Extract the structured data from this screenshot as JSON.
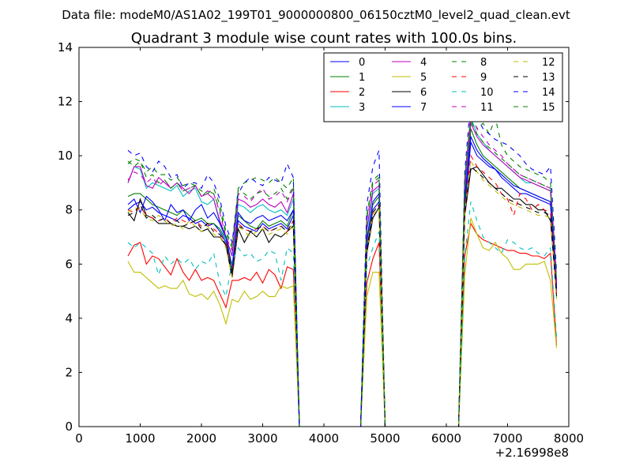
{
  "figure": {
    "suptitle": "Data file: modeM0/AS1A02_199T01_9000000800_06150cztM0_level2_quad_clean.evt"
  },
  "chart_data": {
    "type": "line",
    "title": "Quadrant 3 module wise count rates with 100.0s bins.",
    "xlabel": "",
    "ylabel": "",
    "x_offset_label": "+2.16998e8",
    "xlim": [
      0,
      8000
    ],
    "ylim": [
      0,
      14
    ],
    "xticks": [
      0,
      1000,
      2000,
      3000,
      4000,
      5000,
      6000,
      7000,
      8000
    ],
    "yticks": [
      0,
      2,
      4,
      6,
      8,
      10,
      12,
      14
    ],
    "grid": false,
    "legend_location": "upper right",
    "legend_columns": 4,
    "x": [
      800,
      900,
      1000,
      1100,
      1200,
      1300,
      1400,
      1500,
      1600,
      1700,
      1800,
      1900,
      2000,
      2100,
      2200,
      2300,
      2400,
      2500,
      2600,
      2700,
      2800,
      2900,
      3000,
      3100,
      3200,
      3300,
      3400,
      3500,
      3600,
      3700,
      3800,
      3900,
      4000,
      4100,
      4200,
      4300,
      4400,
      4500,
      4600,
      4700,
      4800,
      4900,
      5000,
      5100,
      5200,
      5300,
      5400,
      5500,
      5600,
      5700,
      5800,
      5900,
      6000,
      6100,
      6200,
      6300,
      6400,
      6500,
      6600,
      6700,
      6800,
      6900,
      7000,
      7100,
      7200,
      7300,
      7400,
      7500,
      7600,
      7700,
      7800
    ],
    "series": [
      {
        "name": "0",
        "color": "#0000ff",
        "dash": "solid",
        "values": [
          8.0,
          8.2,
          8.3,
          8.0,
          8.1,
          7.9,
          7.8,
          7.7,
          7.6,
          7.8,
          7.7,
          7.5,
          7.6,
          7.4,
          7.5,
          7.2,
          6.8,
          5.7,
          7.6,
          7.4,
          7.3,
          7.2,
          7.5,
          7.3,
          7.4,
          7.5,
          7.3,
          7.8,
          0,
          0,
          0,
          0,
          0,
          0,
          0,
          0,
          0,
          0,
          0,
          6.5,
          8.0,
          8.3,
          0,
          0,
          0,
          0,
          0,
          0,
          0,
          0,
          0,
          0,
          0,
          0,
          0,
          8.0,
          10.5,
          10.0,
          9.8,
          9.6,
          9.5,
          9.2,
          9.0,
          8.8,
          8.6,
          8.6,
          8.5,
          8.4,
          8.3,
          8.2,
          5.0
        ]
      },
      {
        "name": "1",
        "color": "#008000",
        "dash": "solid",
        "values": [
          8.5,
          8.6,
          8.6,
          8.4,
          8.2,
          8.1,
          8.0,
          7.9,
          7.8,
          8.0,
          7.8,
          7.6,
          7.7,
          7.5,
          7.5,
          7.3,
          6.9,
          5.8,
          7.8,
          7.6,
          7.4,
          7.3,
          7.6,
          7.4,
          7.5,
          7.6,
          7.4,
          8.0,
          0,
          0,
          0,
          0,
          0,
          0,
          0,
          0,
          0,
          0,
          0,
          6.8,
          8.2,
          8.5,
          0,
          0,
          0,
          0,
          0,
          0,
          0,
          0,
          0,
          0,
          0,
          0,
          0,
          8.2,
          11.0,
          10.4,
          10.0,
          9.8,
          9.6,
          9.4,
          9.2,
          9.0,
          8.8,
          8.7,
          8.6,
          8.5,
          8.4,
          8.3,
          5.2
        ]
      },
      {
        "name": "2",
        "color": "#ff0000",
        "dash": "solid",
        "values": [
          6.3,
          6.7,
          6.8,
          6.0,
          6.3,
          6.2,
          5.9,
          5.6,
          6.2,
          5.7,
          5.4,
          5.8,
          5.4,
          5.5,
          5.4,
          4.9,
          4.4,
          5.4,
          5.4,
          5.5,
          5.4,
          5.7,
          5.3,
          5.8,
          5.6,
          5.1,
          5.9,
          5.8,
          0,
          0,
          0,
          0,
          0,
          0,
          0,
          0,
          0,
          0,
          0,
          5.3,
          6.2,
          6.8,
          0,
          0,
          0,
          0,
          0,
          0,
          0,
          0,
          0,
          0,
          0,
          0,
          0,
          6.3,
          7.5,
          7.1,
          6.9,
          6.8,
          6.7,
          6.6,
          6.5,
          6.5,
          6.4,
          6.4,
          6.3,
          6.3,
          6.2,
          6.4,
          3.0
        ]
      },
      {
        "name": "3",
        "color": "#00bfbf",
        "dash": "solid",
        "values": [
          9.0,
          9.6,
          9.5,
          8.8,
          9.0,
          8.9,
          8.8,
          8.7,
          8.9,
          8.5,
          8.7,
          8.8,
          8.3,
          8.2,
          8.4,
          7.5,
          6.9,
          6.3,
          8.2,
          8.1,
          7.9,
          8.1,
          8.2,
          8.0,
          7.9,
          8.0,
          7.8,
          8.4,
          0,
          0,
          0,
          0,
          0,
          0,
          0,
          0,
          0,
          0,
          0,
          7.2,
          8.6,
          8.8,
          0,
          0,
          0,
          0,
          0,
          0,
          0,
          0,
          0,
          0,
          0,
          0,
          0,
          8.6,
          11.4,
          10.8,
          10.5,
          10.2,
          10.0,
          9.8,
          9.6,
          9.4,
          9.2,
          9.0,
          9.0,
          8.9,
          8.8,
          8.7,
          5.4
        ]
      },
      {
        "name": "4",
        "color": "#bf00bf",
        "dash": "solid",
        "values": [
          9.0,
          9.6,
          9.6,
          8.9,
          8.8,
          9.2,
          9.0,
          8.8,
          9.0,
          8.8,
          8.6,
          8.9,
          8.5,
          8.6,
          8.4,
          7.6,
          7.0,
          6.3,
          8.4,
          8.3,
          8.1,
          8.2,
          8.4,
          8.2,
          8.1,
          8.3,
          7.9,
          8.6,
          0,
          0,
          0,
          0,
          0,
          0,
          0,
          0,
          0,
          0,
          0,
          7.3,
          8.7,
          8.9,
          0,
          0,
          0,
          0,
          0,
          0,
          0,
          0,
          0,
          0,
          0,
          0,
          0,
          8.8,
          11.2,
          10.7,
          10.4,
          10.2,
          10.0,
          9.8,
          9.6,
          9.4,
          9.2,
          9.1,
          9.0,
          8.9,
          8.8,
          8.7,
          5.3
        ]
      },
      {
        "name": "5",
        "color": "#bfbf00",
        "dash": "solid",
        "values": [
          6.1,
          5.7,
          5.7,
          5.5,
          5.3,
          5.1,
          5.2,
          5.1,
          5.1,
          5.4,
          4.9,
          4.8,
          4.9,
          4.7,
          5.0,
          4.5,
          3.8,
          4.7,
          4.6,
          5.0,
          4.7,
          4.8,
          5.0,
          4.8,
          4.8,
          5.2,
          5.1,
          5.2,
          0,
          0,
          0,
          0,
          0,
          0,
          0,
          0,
          0,
          0,
          0,
          4.8,
          5.7,
          5.7,
          0,
          0,
          0,
          0,
          0,
          0,
          0,
          0,
          0,
          0,
          0,
          0,
          0,
          5.6,
          7.7,
          7.1,
          6.6,
          6.5,
          6.8,
          6.4,
          6.2,
          5.8,
          5.8,
          6.0,
          6.0,
          6.0,
          6.1,
          5.4,
          2.9
        ]
      },
      {
        "name": "6",
        "color": "#000000",
        "dash": "solid",
        "values": [
          7.9,
          7.6,
          8.4,
          7.8,
          7.7,
          7.5,
          7.5,
          7.5,
          7.4,
          7.4,
          7.3,
          7.4,
          7.2,
          7.3,
          7.0,
          7.0,
          6.7,
          5.5,
          7.3,
          6.8,
          7.2,
          7.0,
          7.3,
          6.8,
          7.1,
          7.0,
          7.2,
          7.4,
          0,
          0,
          0,
          0,
          0,
          0,
          0,
          0,
          0,
          0,
          0,
          6.4,
          7.7,
          8.1,
          0,
          0,
          0,
          0,
          0,
          0,
          0,
          0,
          0,
          0,
          0,
          0,
          0,
          7.8,
          9.5,
          9.6,
          9.3,
          9.0,
          8.8,
          8.8,
          8.6,
          8.4,
          8.4,
          8.2,
          8.2,
          8.0,
          8.0,
          7.6,
          4.9
        ]
      },
      {
        "name": "7",
        "color": "#0000ff",
        "dash": "solid",
        "values": [
          8.2,
          8.4,
          7.9,
          8.5,
          8.3,
          8.0,
          7.6,
          8.2,
          7.9,
          8.0,
          7.6,
          8.0,
          8.2,
          7.7,
          7.9,
          7.5,
          7.0,
          5.9,
          7.9,
          7.6,
          7.5,
          7.7,
          7.8,
          7.6,
          7.7,
          7.8,
          7.6,
          8.0,
          0,
          0,
          0,
          0,
          0,
          0,
          0,
          0,
          0,
          0,
          0,
          6.9,
          8.3,
          8.6,
          0,
          0,
          0,
          0,
          0,
          0,
          0,
          0,
          0,
          0,
          0,
          0,
          0,
          8.4,
          10.7,
          10.2,
          9.9,
          9.7,
          9.5,
          9.3,
          9.1,
          8.9,
          8.8,
          8.7,
          8.6,
          8.5,
          8.4,
          8.3,
          5.1
        ]
      },
      {
        "name": "8",
        "color": "#008000",
        "dash": "dashed",
        "values": [
          9.7,
          9.9,
          9.8,
          9.4,
          9.6,
          9.3,
          9.3,
          9.1,
          9.2,
          8.9,
          9.0,
          8.9,
          8.7,
          8.6,
          8.8,
          8.2,
          7.2,
          6.7,
          8.8,
          9.0,
          9.1,
          9.2,
          9.1,
          9.0,
          9.2,
          9.0,
          8.8,
          9.2,
          0,
          0,
          0,
          0,
          0,
          0,
          0,
          0,
          0,
          0,
          0,
          7.8,
          9.1,
          9.3,
          0,
          0,
          0,
          0,
          0,
          0,
          0,
          0,
          0,
          0,
          0,
          0,
          0,
          9.2,
          11.5,
          11.0,
          11.2,
          10.8,
          11.4,
          10.4,
          10.0,
          9.8,
          9.6,
          9.5,
          9.4,
          9.3,
          9.2,
          9.0,
          5.5
        ]
      },
      {
        "name": "9",
        "color": "#ff0000",
        "dash": "dashed",
        "values": [
          8.0,
          7.9,
          8.1,
          7.8,
          7.7,
          7.6,
          7.7,
          7.5,
          7.7,
          7.6,
          7.5,
          7.6,
          7.4,
          7.5,
          7.3,
          7.1,
          6.8,
          5.6,
          7.5,
          7.3,
          7.2,
          7.3,
          7.4,
          7.2,
          7.3,
          7.4,
          7.2,
          7.6,
          0,
          0,
          0,
          0,
          0,
          0,
          0,
          0,
          0,
          0,
          0,
          6.6,
          7.9,
          8.2,
          0,
          0,
          0,
          0,
          0,
          0,
          0,
          0,
          0,
          0,
          0,
          0,
          0,
          8.0,
          10.0,
          9.6,
          9.4,
          9.2,
          9.0,
          8.6,
          8.4,
          7.8,
          8.6,
          8.4,
          8.0,
          8.2,
          8.0,
          7.9,
          4.8
        ]
      },
      {
        "name": "10",
        "color": "#00bfbf",
        "dash": "dashed",
        "values": [
          6.8,
          6.6,
          6.8,
          6.6,
          6.4,
          5.6,
          6.3,
          6.0,
          6.2,
          6.0,
          6.2,
          5.8,
          6.1,
          6.0,
          6.4,
          5.3,
          4.8,
          6.1,
          6.6,
          6.3,
          6.4,
          6.1,
          6.2,
          6.5,
          6.4,
          5.4,
          6.6,
          6.4,
          0,
          0,
          0,
          0,
          0,
          0,
          0,
          0,
          0,
          0,
          0,
          5.9,
          6.6,
          7.2,
          0,
          0,
          0,
          0,
          0,
          0,
          0,
          0,
          0,
          0,
          0,
          0,
          0,
          6.3,
          8.3,
          7.6,
          7.0,
          6.8,
          6.6,
          6.4,
          6.9,
          6.8,
          6.6,
          6.5,
          6.6,
          6.4,
          6.3,
          6.6,
          3.3
        ]
      },
      {
        "name": "11",
        "color": "#bf00bf",
        "dash": "dashed",
        "values": [
          9.1,
          9.4,
          9.3,
          9.0,
          9.2,
          8.9,
          9.1,
          8.8,
          9.0,
          8.7,
          8.8,
          8.9,
          8.5,
          8.7,
          8.6,
          7.9,
          7.0,
          6.5,
          8.6,
          8.5,
          8.3,
          8.6,
          8.8,
          8.4,
          8.5,
          8.7,
          8.3,
          8.8,
          0,
          0,
          0,
          0,
          0,
          0,
          0,
          0,
          0,
          0,
          0,
          7.6,
          8.9,
          9.1,
          0,
          0,
          0,
          0,
          0,
          0,
          0,
          0,
          0,
          0,
          0,
          0,
          0,
          9.0,
          11.6,
          11.0,
          10.7,
          10.4,
          10.2,
          10.0,
          9.7,
          9.5,
          9.3,
          9.2,
          9.1,
          9.0,
          8.9,
          8.8,
          5.4
        ]
      },
      {
        "name": "12",
        "color": "#bfbf00",
        "dash": "dashed",
        "values": [
          7.9,
          8.1,
          8.0,
          7.7,
          7.6,
          7.8,
          7.6,
          7.4,
          7.5,
          7.3,
          7.6,
          7.4,
          7.2,
          7.4,
          7.1,
          7.0,
          6.6,
          5.5,
          7.4,
          7.2,
          7.0,
          7.2,
          7.3,
          7.1,
          7.2,
          7.3,
          7.1,
          7.5,
          0,
          0,
          0,
          0,
          0,
          0,
          0,
          0,
          0,
          0,
          0,
          6.5,
          7.8,
          8.1,
          0,
          0,
          0,
          0,
          0,
          0,
          0,
          0,
          0,
          0,
          0,
          0,
          0,
          7.9,
          9.8,
          9.4,
          9.1,
          8.9,
          8.7,
          8.5,
          8.3,
          8.2,
          8.1,
          8.0,
          7.9,
          7.8,
          7.8,
          7.7,
          4.7
        ]
      },
      {
        "name": "13",
        "color": "#000000",
        "dash": "dashed",
        "values": [
          7.8,
          7.9,
          8.2,
          7.7,
          7.8,
          7.6,
          7.7,
          7.5,
          7.6,
          7.4,
          7.5,
          7.6,
          7.3,
          7.5,
          7.2,
          7.1,
          6.7,
          5.6,
          7.4,
          7.3,
          7.2,
          7.3,
          7.4,
          7.2,
          7.3,
          7.4,
          7.2,
          7.6,
          0,
          0,
          0,
          0,
          0,
          0,
          0,
          0,
          0,
          0,
          0,
          6.5,
          7.9,
          8.2,
          0,
          0,
          0,
          0,
          0,
          0,
          0,
          0,
          0,
          0,
          0,
          0,
          0,
          7.9,
          9.6,
          9.4,
          9.2,
          9.0,
          8.8,
          8.6,
          8.4,
          8.3,
          8.2,
          8.1,
          8.0,
          7.9,
          7.9,
          7.8,
          4.8
        ]
      },
      {
        "name": "14",
        "color": "#0000ff",
        "dash": "dashed",
        "values": [
          10.2,
          10.0,
          10.1,
          9.6,
          9.4,
          9.8,
          9.6,
          9.2,
          9.3,
          8.8,
          9.0,
          9.0,
          8.8,
          9.3,
          9.0,
          8.4,
          7.4,
          6.8,
          8.6,
          9.0,
          9.2,
          9.0,
          8.9,
          9.2,
          9.1,
          9.0,
          9.7,
          9.2,
          0,
          0,
          0,
          0,
          0,
          0,
          0,
          0,
          0,
          0,
          0,
          8.2,
          9.6,
          10.2,
          0,
          0,
          0,
          0,
          0,
          0,
          0,
          0,
          0,
          0,
          0,
          0,
          0,
          9.4,
          12.1,
          11.4,
          11.0,
          10.8,
          10.6,
          10.5,
          10.4,
          10.2,
          10.0,
          9.7,
          9.5,
          9.4,
          9.3,
          9.6,
          5.7
        ]
      },
      {
        "name": "15",
        "color": "#008000",
        "dash": "dashed",
        "values": [
          9.8,
          9.6,
          9.8,
          9.2,
          9.3,
          9.0,
          9.1,
          8.8,
          9.0,
          8.7,
          8.8,
          8.9,
          8.5,
          8.7,
          8.6,
          8.0,
          7.1,
          6.6,
          8.7,
          8.6,
          8.4,
          8.6,
          8.7,
          8.5,
          8.6,
          8.8,
          8.4,
          8.9,
          0,
          0,
          0,
          0,
          0,
          0,
          0,
          0,
          0,
          0,
          0,
          7.7,
          9.0,
          9.2,
          0,
          0,
          0,
          0,
          0,
          0,
          0,
          0,
          0,
          0,
          0,
          0,
          0,
          9.1,
          11.3,
          10.8,
          10.5,
          10.3,
          10.1,
          9.9,
          9.7,
          9.5,
          9.3,
          9.2,
          9.1,
          9.0,
          8.9,
          8.8,
          5.4
        ]
      }
    ]
  }
}
